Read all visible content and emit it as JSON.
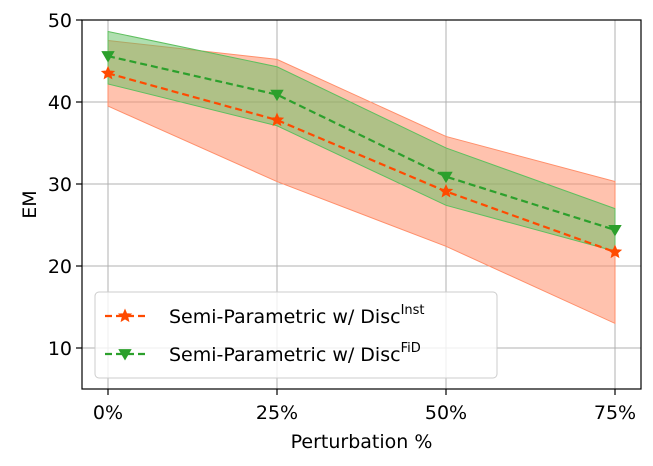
{
  "chart_data": {
    "type": "line",
    "title": "",
    "xlabel": "Perturbation %",
    "ylabel": "EM",
    "categories": [
      "0%",
      "25%",
      "50%",
      "75%"
    ],
    "ylim": [
      5,
      50
    ],
    "yticks": [
      10,
      20,
      30,
      40,
      50
    ],
    "grid": true,
    "legend_position": "lower-left",
    "series": [
      {
        "name": "Semi-Parametric w/ Disc",
        "superscript": "Inst",
        "color": "#ff4a00",
        "band_color": "#ff8f6b",
        "marker": "star",
        "linestyle": "dashed",
        "values": [
          43.5,
          37.8,
          29.1,
          21.7
        ],
        "band_lower": [
          39.5,
          30.3,
          22.4,
          13.0
        ],
        "band_upper": [
          47.5,
          45.2,
          35.8,
          30.3
        ]
      },
      {
        "name": "Semi-Parametric w/ Disc",
        "superscript": "FiD",
        "color": "#2ca02c",
        "band_color": "#5fbf5f",
        "marker": "triangle-down",
        "linestyle": "dashed",
        "values": [
          45.6,
          40.9,
          30.9,
          24.4
        ],
        "band_lower": [
          42.2,
          37.1,
          27.4,
          21.8
        ],
        "band_upper": [
          48.6,
          44.3,
          34.4,
          27.0
        ]
      }
    ]
  }
}
